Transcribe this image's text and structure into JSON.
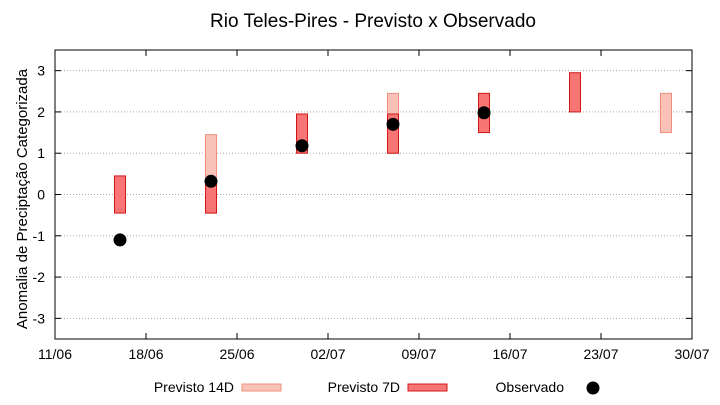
{
  "chart_data": {
    "type": "scatter",
    "title": "Rio Teles-Pires - Previsto x Observado",
    "xlabel": "",
    "ylabel": "Anomalia de Preciptação Categorizada",
    "x_tick_labels": [
      "11/06",
      "18/06",
      "25/06",
      "02/07",
      "09/07",
      "16/07",
      "23/07",
      "30/07"
    ],
    "y_tick_labels": [
      "3",
      "2",
      "1",
      "0",
      "-1",
      "-2",
      "-3"
    ],
    "y_ticks": [
      3,
      2,
      1,
      0,
      -1,
      -2,
      -3
    ],
    "x_ticks_day": [
      0,
      7,
      14,
      21,
      28,
      35,
      42,
      49
    ],
    "xlim_day": [
      0,
      49
    ],
    "ylim": [
      -3.5,
      3.5
    ],
    "grid": "y-dotted",
    "legend_placement": "bottom",
    "series": [
      {
        "name": "Previsto 14D",
        "kind": "range",
        "color": "#f9c2b9",
        "stroke": "#f08f80",
        "points": [
          {
            "x": "23/06",
            "day": 12,
            "low": -0.45,
            "high": 1.45
          },
          {
            "x": "07/07",
            "day": 26,
            "low": 1.0,
            "high": 2.45
          },
          {
            "x": "28/07",
            "day": 47,
            "low": 1.5,
            "high": 2.45
          }
        ]
      },
      {
        "name": "Previsto 7D",
        "kind": "range",
        "color": "#f87575",
        "stroke": "#d01818",
        "points": [
          {
            "x": "16/06",
            "day": 5,
            "low": -0.45,
            "high": 0.45
          },
          {
            "x": "23/06",
            "day": 12,
            "low": -0.45,
            "high": 0.3
          },
          {
            "x": "30/06",
            "day": 19,
            "low": 1.0,
            "high": 1.95
          },
          {
            "x": "07/07",
            "day": 26,
            "low": 1.0,
            "high": 1.95
          },
          {
            "x": "14/07",
            "day": 33,
            "low": 1.5,
            "high": 2.45
          },
          {
            "x": "21/07",
            "day": 40,
            "low": 2.0,
            "high": 2.95
          }
        ]
      },
      {
        "name": "Observado",
        "kind": "point",
        "color": "#000000",
        "points": [
          {
            "x": "16/06",
            "day": 5,
            "y": -1.1
          },
          {
            "x": "23/06",
            "day": 12,
            "y": 0.32
          },
          {
            "x": "30/06",
            "day": 19,
            "y": 1.18
          },
          {
            "x": "07/07",
            "day": 26,
            "y": 1.7
          },
          {
            "x": "14/07",
            "day": 33,
            "y": 1.98
          }
        ]
      }
    ]
  }
}
